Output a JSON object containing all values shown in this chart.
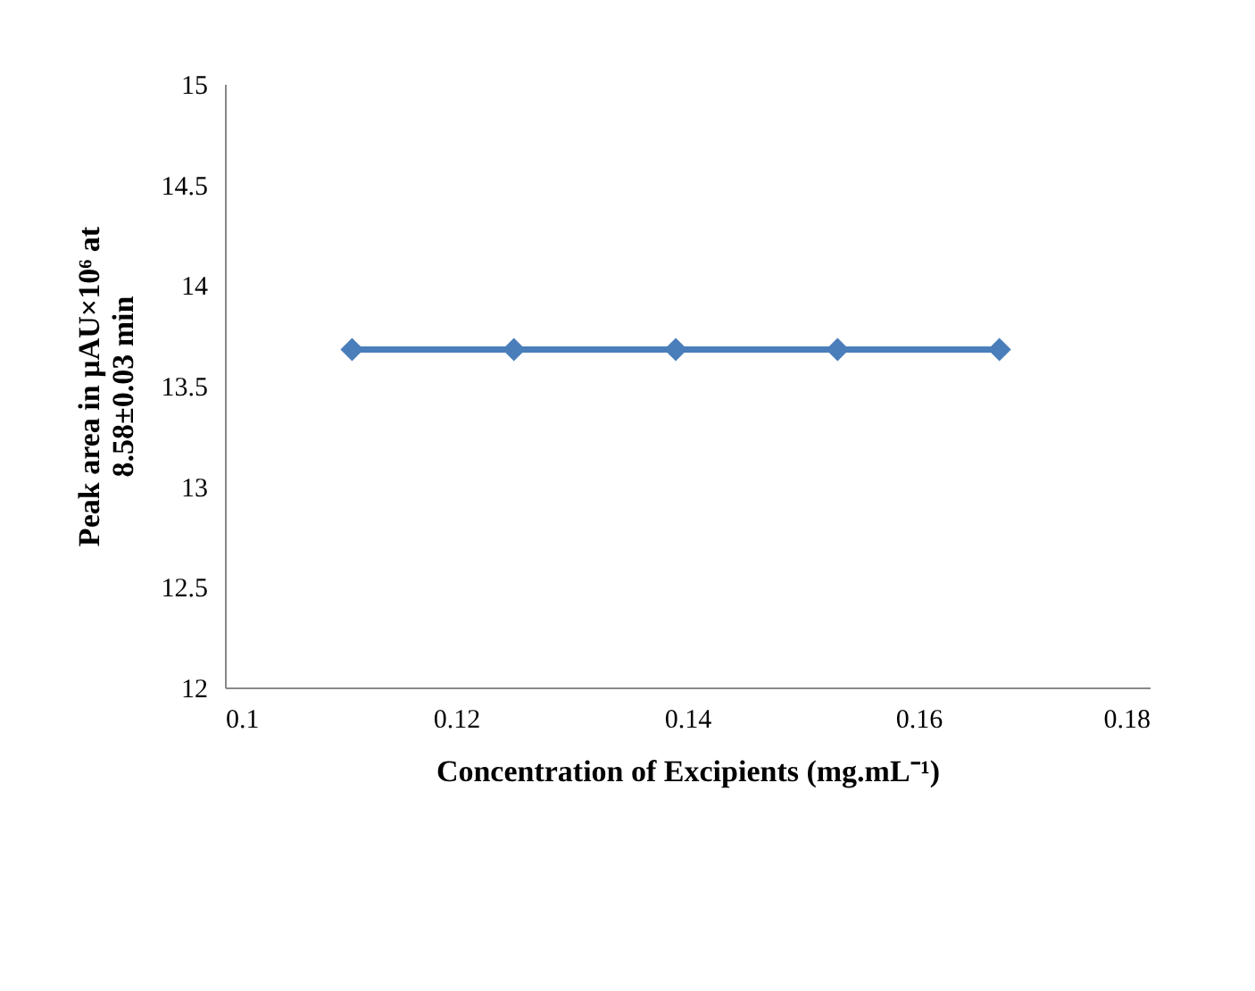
{
  "chart_data": {
    "type": "line",
    "xlabel": "Concentration of Excipients (mg.mL⁻¹)",
    "ylabel": "Peak area in µAU×10⁶ at 8.58±0.03 min",
    "x": [
      0.111,
      0.125,
      0.139,
      0.153,
      0.167
    ],
    "series": [
      {
        "color": "#4a7ebb",
        "values": [
          13.68,
          13.68,
          13.68,
          13.68,
          13.68
        ]
      }
    ],
    "xlim": [
      0.1,
      0.18
    ],
    "xticks": [
      0.1,
      0.12,
      0.14,
      0.16,
      0.18
    ],
    "ylim": [
      12,
      15
    ],
    "yticks": [
      12,
      12.5,
      13,
      13.5,
      14,
      14.5,
      15
    ],
    "grid": false,
    "marker": "diamond",
    "line_style": "solid"
  }
}
